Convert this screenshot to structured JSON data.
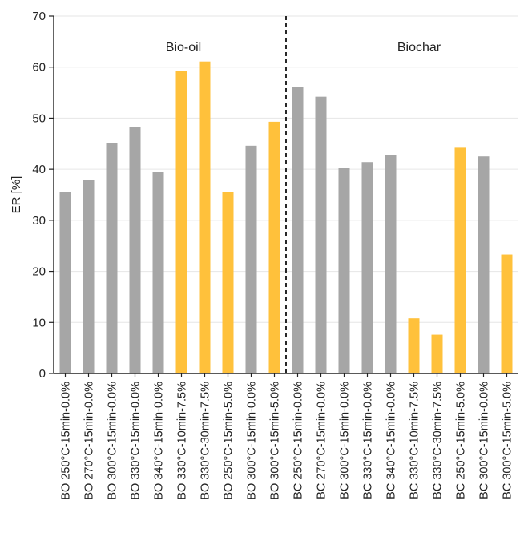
{
  "chart_data": {
    "type": "bar",
    "title": "",
    "xlabel": "",
    "ylabel": "ER [%]",
    "ylim": [
      0,
      70
    ],
    "yticks": [
      0,
      10,
      20,
      30,
      40,
      50,
      60,
      70
    ],
    "grid": "horizontal",
    "divider_after_index": 9,
    "group_labels": [
      "Bio-oil",
      "Biochar"
    ],
    "colors": {
      "gray": "#a6a6a6",
      "highlight": "#ffc13b"
    },
    "categories": [
      "BO 250°C-15min-0.0%",
      "BO 270°C-15min-0.0%",
      "BO 300°C-15min-0.0%",
      "BO 330°C-15min-0.0%",
      "BO 340°C-15min-0.0%",
      "BO 330°C-10min-7.5%",
      "BO 330°C-30min-7.5%",
      "BO 250°C-15min-5.0%",
      "BO 300°C-15min-0.0%",
      "BO 300°C-15min-5.0%",
      "BC 250°C-15min-0.0%",
      "BC 270°C-15min-0.0%",
      "BC 300°C-15min-0.0%",
      "BC 330°C-15min-0.0%",
      "BC 340°C-15min-0.0%",
      "BC 330°C-10min-7.5%",
      "BC 330°C-30min-7.5%",
      "BC 250°C-15min-5.0%",
      "BC 300°C-15min-0.0%",
      "BC 300°C-15min-5.0%"
    ],
    "values": [
      35.6,
      37.9,
      45.2,
      48.2,
      39.5,
      59.3,
      61.1,
      35.6,
      44.6,
      49.3,
      56.1,
      54.2,
      40.2,
      41.4,
      42.7,
      10.8,
      7.6,
      44.2,
      42.5,
      23.3
    ],
    "highlight": [
      false,
      false,
      false,
      false,
      false,
      true,
      true,
      true,
      false,
      true,
      false,
      false,
      false,
      false,
      false,
      true,
      true,
      true,
      false,
      true
    ]
  }
}
